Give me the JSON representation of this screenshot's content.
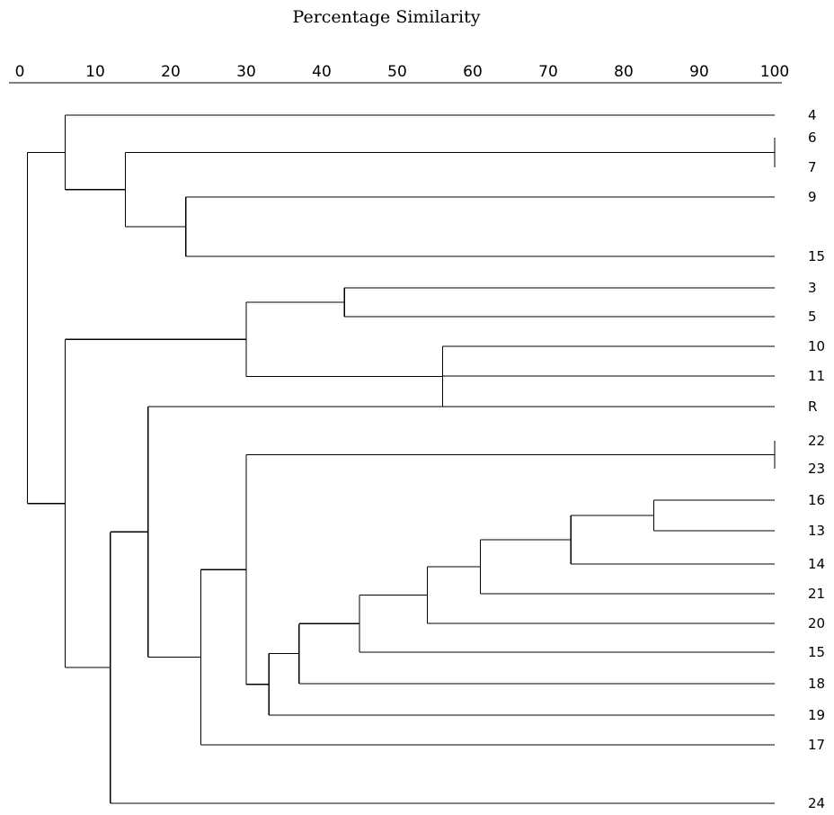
{
  "title": "Percentage Similarity",
  "axis": {
    "ticks": [
      "0",
      "10",
      "20",
      "30",
      "40",
      "50",
      "60",
      "70",
      "80",
      "90",
      "100"
    ],
    "range": [
      0,
      100
    ]
  },
  "leaves": [
    "4",
    "6",
    "7",
    "9",
    "15",
    "3",
    "5",
    "10",
    "11",
    "R",
    "22",
    "23",
    "16",
    "13",
    "14",
    "21",
    "20",
    "15",
    "18",
    "19",
    "17",
    "24"
  ],
  "merges": [
    {
      "id": "c6_7",
      "children": [
        "L1",
        "L2"
      ],
      "similarity": 100
    },
    {
      "id": "c9_15",
      "children": [
        "L3",
        "L4"
      ],
      "similarity": 22
    },
    {
      "id": "c6_7_9_15",
      "children": [
        "c6_7",
        "c9_15"
      ],
      "similarity": 14
    },
    {
      "id": "cTop",
      "children": [
        "L0",
        "c6_7_9_15"
      ],
      "similarity": 6
    },
    {
      "id": "c3_5",
      "children": [
        "L5",
        "L6"
      ],
      "similarity": 43
    },
    {
      "id": "c10_11_R",
      "children": [
        "L7",
        "L8",
        "L9"
      ],
      "similarity": 56
    },
    {
      "id": "cMid",
      "children": [
        "c3_5",
        "c10_11_R"
      ],
      "similarity": 30
    },
    {
      "id": "c22_23",
      "children": [
        "L10",
        "L11"
      ],
      "similarity": 100
    },
    {
      "id": "c16_13",
      "children": [
        "L12",
        "L13"
      ],
      "similarity": 84
    },
    {
      "id": "c16_13_14",
      "children": [
        "c16_13",
        "L14"
      ],
      "similarity": 73
    },
    {
      "id": "cA21",
      "children": [
        "c16_13_14",
        "L15"
      ],
      "similarity": 61
    },
    {
      "id": "cA20",
      "children": [
        "cA21",
        "L16"
      ],
      "similarity": 54
    },
    {
      "id": "cA15",
      "children": [
        "cA20",
        "L17"
      ],
      "similarity": 45
    },
    {
      "id": "cA18",
      "children": [
        "cA15",
        "L18"
      ],
      "similarity": 37
    },
    {
      "id": "cA19",
      "children": [
        "cA18",
        "L19"
      ],
      "similarity": 33
    },
    {
      "id": "cB",
      "children": [
        "c22_23",
        "cA19"
      ],
      "similarity": 30
    },
    {
      "id": "cB17",
      "children": [
        "cB",
        "L20"
      ],
      "similarity": 24
    },
    {
      "id": "cBR",
      "children": [
        "L9x",
        "cB17"
      ],
      "similarity": 17
    },
    {
      "id": "cB24",
      "children": [
        "cBR",
        "L21"
      ],
      "similarity": 12
    },
    {
      "id": "cLower",
      "children": [
        "cMid",
        "cB24"
      ],
      "similarity": 6
    },
    {
      "id": "cRoot",
      "children": [
        "cTop",
        "cLower"
      ],
      "similarity": 1
    }
  ]
}
